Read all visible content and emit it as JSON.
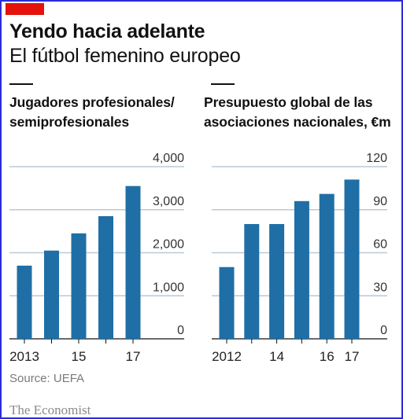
{
  "header": {
    "title": "Yendo hacia adelante",
    "subtitle": "El fútbol femenino europeo"
  },
  "colors": {
    "bar": "#1f6fa6",
    "grid": "#b9cad6",
    "accent_tag": "#e3120b"
  },
  "chart_data": [
    {
      "type": "bar",
      "title_lines": [
        "Jugadores profesionales/",
        "semiprofesionales"
      ],
      "x": [
        2013,
        2014,
        2015,
        2016,
        2017
      ],
      "x_tick_labels": [
        "2013",
        "",
        "15",
        "",
        "17"
      ],
      "values": [
        1700,
        2050,
        2450,
        2850,
        3550
      ],
      "ylim": [
        0,
        4000
      ],
      "y_ticks": [
        0,
        1000,
        2000,
        3000,
        4000
      ],
      "y_tick_labels": [
        "0",
        "1,000",
        "2,000",
        "3,000",
        "4,000"
      ],
      "y_axis_side": "right",
      "grid": true
    },
    {
      "type": "bar",
      "title_lines": [
        "Presupuesto global de las",
        "asociaciones nacionales, €m"
      ],
      "x": [
        2012,
        2013,
        2014,
        2015,
        2016,
        2017
      ],
      "x_tick_labels": [
        "2012",
        "",
        "14",
        "",
        "16",
        "17"
      ],
      "values": [
        50,
        80,
        80,
        96,
        101,
        111
      ],
      "ylim": [
        0,
        120
      ],
      "y_ticks": [
        0,
        30,
        60,
        90,
        120
      ],
      "y_tick_labels": [
        "0",
        "30",
        "60",
        "90",
        "120"
      ],
      "y_axis_side": "right",
      "grid": true
    }
  ],
  "footer": {
    "source": "Source: UEFA",
    "brand": "The Economist"
  }
}
